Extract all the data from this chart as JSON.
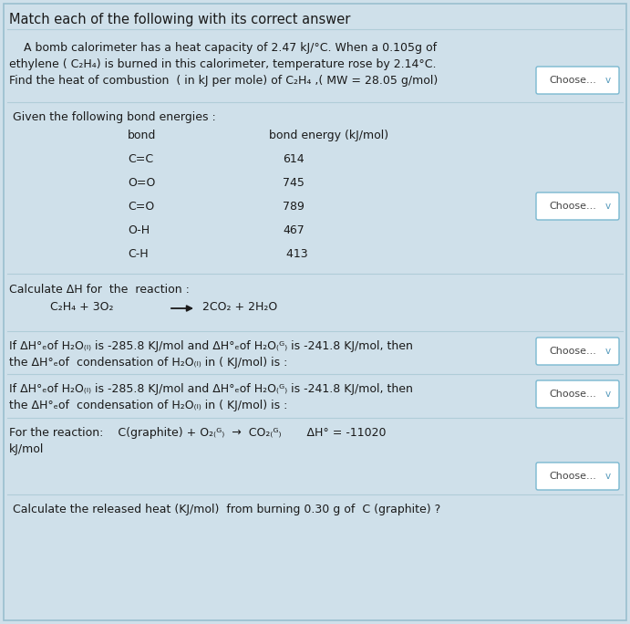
{
  "bg_color": "#cfe0ea",
  "title": "Match each of the following with its correct answer",
  "choose_btn_text": "Choose...",
  "line1_sec1": "  A bomb calorimeter has a heat capacity of 2.47 kJ/°C. When a 0.105g of",
  "line2_sec1": "ethylene ( C₂H₄) is burned in this calorimeter, temperature rose by 2.14°C.",
  "line3_sec1": "Find the heat of combustion  ( in kJ per mole) of C₂H₄ ,( MW = 28.05 g/mol)",
  "sec2_header": " Given the following bond energies :",
  "col1_header": "bond",
  "col2_header": "bond energy (kJ/mol)",
  "bonds": [
    [
      "C=C",
      "614"
    ],
    [
      "O=O",
      "745"
    ],
    [
      "C=O",
      "789"
    ],
    [
      "O-H",
      "467"
    ],
    [
      "C-H",
      " 413"
    ]
  ],
  "sec3_header": "Calculate ΔH for  the  reaction :",
  "reaction_left": "C₂H₄ + 3O₂",
  "reaction_right": "2CO₂ + 2H₂O",
  "h2o_line1": "If ΔH°ₑof H₂O₍ₗ₎ is -285.8 KJ/mol and ΔH°ₑof H₂O₍ᴳ₎ is -241.8 KJ/mol, then",
  "h2o_line2": "the ΔH°ₑof  condensation of H₂O₍ₗ₎ in ( KJ/mol) is :",
  "rxn_line1": "For the reaction:    C(graphite) + O₂₍ᴳ₎  →  CO₂₍ᴳ₎       ΔH° = -11020",
  "rxn_line2": "kJ/mol",
  "last_line": " Calculate the released heat (KJ/mol)  from burning 0.30 g of  C (graphite) ?",
  "sep_color": "#b0cdd8",
  "btn_border": "#7ab8d0",
  "text_color": "#1a1a1a",
  "font_size": 9.0,
  "title_font_size": 10.5,
  "figw": 6.91,
  "figh": 6.84,
  "dpi": 100
}
